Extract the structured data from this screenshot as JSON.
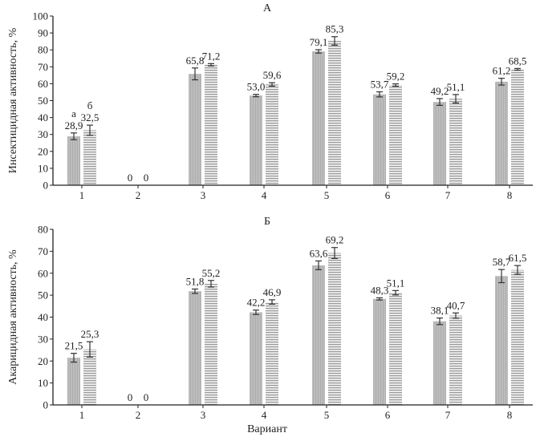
{
  "chart_data": [
    {
      "type": "bar",
      "title": "А",
      "xlabel": "",
      "ylabel": "Инсектицидная активность, %",
      "ylim": [
        0,
        100
      ],
      "yticks": [
        0,
        10,
        20,
        30,
        40,
        50,
        60,
        70,
        80,
        90,
        100
      ],
      "categories": [
        "1",
        "2",
        "3",
        "4",
        "5",
        "6",
        "7",
        "8"
      ],
      "series_labels": [
        "а",
        "б"
      ],
      "series": [
        {
          "name": "а",
          "values": [
            28.9,
            0,
            65.8,
            53.0,
            79.1,
            53.7,
            49.2,
            61.2
          ],
          "labels": [
            "28,9",
            "0",
            "65,8",
            "53,0",
            "79,1",
            "53,7",
            "49,2",
            "61,2"
          ],
          "errors": [
            2,
            0,
            3.5,
            0.7,
            1,
            1.5,
            2,
            2
          ]
        },
        {
          "name": "б",
          "values": [
            32.5,
            0,
            71.2,
            59.6,
            85.3,
            59.2,
            51.1,
            68.5
          ],
          "labels": [
            "32,5",
            "0",
            "71,2",
            "59,6",
            "85,3",
            "59,2",
            "51,1",
            "68,5"
          ],
          "errors": [
            3,
            0,
            0.7,
            1,
            2.5,
            0.7,
            2.5,
            0.5
          ]
        }
      ],
      "grid": false
    },
    {
      "type": "bar",
      "title": "Б",
      "xlabel": "Вариант",
      "ylabel": "Акарицидная активность, %",
      "ylim": [
        0,
        80
      ],
      "yticks": [
        0,
        10,
        20,
        30,
        40,
        50,
        60,
        70,
        80
      ],
      "categories": [
        "1",
        "2",
        "3",
        "4",
        "5",
        "6",
        "7",
        "8"
      ],
      "series": [
        {
          "name": "а",
          "values": [
            21.5,
            0,
            51.8,
            42.2,
            63.6,
            48.3,
            38.1,
            58.7
          ],
          "labels": [
            "21,5",
            "0",
            "51,8",
            "42,2",
            "63,6",
            "48,3",
            "38,1",
            "58,7"
          ],
          "errors": [
            2,
            0,
            1,
            1,
            2,
            0.5,
            1.5,
            3
          ]
        },
        {
          "name": "б",
          "values": [
            25.3,
            0,
            55.2,
            46.9,
            69.2,
            51.1,
            40.7,
            61.5
          ],
          "labels": [
            "25,3",
            "0",
            "55,2",
            "46,9",
            "69,2",
            "51,1",
            "40,7",
            "61,5"
          ],
          "errors": [
            3.5,
            0,
            1.5,
            1,
            2.5,
            1,
            1.2,
            2
          ]
        }
      ],
      "grid": false
    }
  ],
  "colors": {
    "series_a": "#b5b5b5",
    "series_b_stripe": "#9a9a9a",
    "axis": "#222222"
  }
}
